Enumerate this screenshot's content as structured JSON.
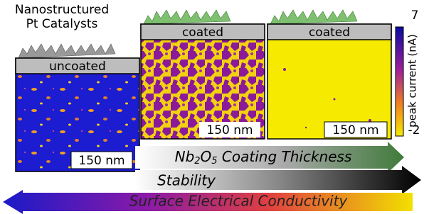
{
  "figure": {
    "left_title": [
      "Nanostructured",
      "Pt Catalysts"
    ],
    "panels": [
      {
        "label": "uncoated",
        "scale": "150 nm"
      },
      {
        "label": "coated",
        "scale": "150 nm"
      },
      {
        "label": "coated",
        "scale": "150 nm"
      }
    ],
    "colorbar": {
      "max": 7,
      "min": -2,
      "label": "peak current (nA)"
    },
    "arrows": {
      "thickness": [
        "Nb",
        "2",
        "O",
        "5",
        " Coating Thickness"
      ],
      "stability": "Stability",
      "conductivity": "Surface Electrical Conductivity"
    }
  }
}
